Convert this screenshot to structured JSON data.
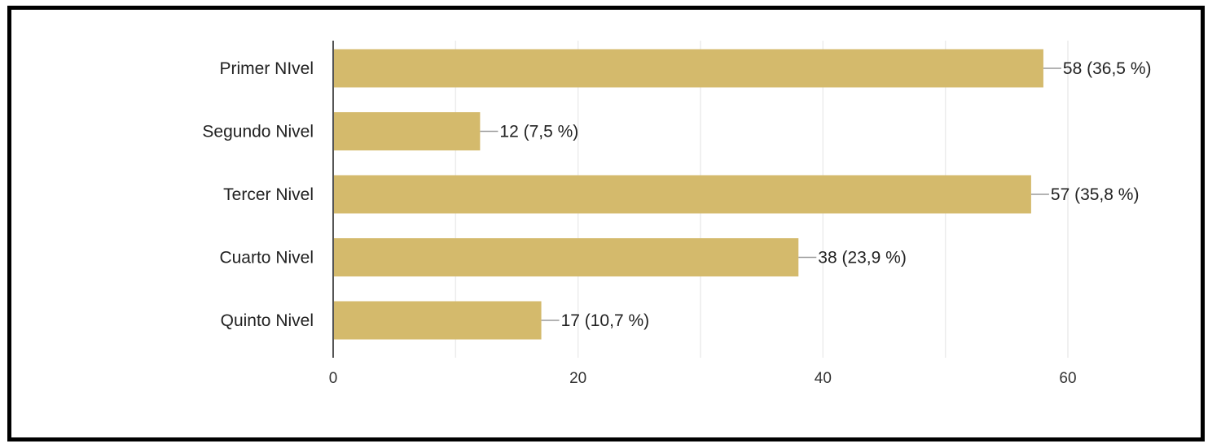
{
  "chart_data": {
    "type": "bar",
    "orientation": "horizontal",
    "categories": [
      "Primer NIvel",
      "Segundo Nivel",
      "Tercer Nivel",
      "Cuarto Nivel",
      "Quinto Nivel"
    ],
    "values": [
      58,
      12,
      57,
      38,
      17
    ],
    "value_labels": [
      "58 (36,5 %)",
      "12 (7,5 %)",
      "57 (35,8 %)",
      "38 (23,9 %)",
      "17 (10,7 %)"
    ],
    "xticks": [
      0,
      20,
      40,
      60
    ],
    "xlim": [
      0,
      60
    ],
    "grid": true,
    "bar_color": "#d4ba6c"
  }
}
